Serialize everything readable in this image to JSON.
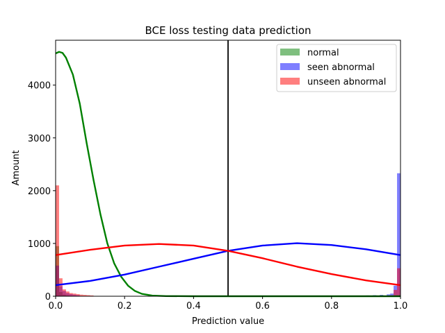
{
  "chart_data": {
    "type": "histogram",
    "title": "BCE loss testing data prediction",
    "xlabel": "Prediction value",
    "ylabel": "Amount",
    "xlim": [
      0.0,
      1.0
    ],
    "ylim": [
      0,
      4850
    ],
    "xticks": [
      "0.0",
      "0.2",
      "0.4",
      "0.6",
      "0.8",
      "1.0"
    ],
    "yticks": [
      "0",
      "1000",
      "2000",
      "3000",
      "4000"
    ],
    "xtick_values": [
      0.0,
      0.2,
      0.4,
      0.6,
      0.8,
      1.0
    ],
    "ytick_values": [
      0,
      1000,
      2000,
      3000,
      4000
    ],
    "threshold": 0.5,
    "legend_placement": "upper right",
    "series": [
      {
        "name": "normal",
        "color": "#008000",
        "histogram": {
          "bin_left_edges": [
            0.0,
            0.01,
            0.02,
            0.03,
            0.04
          ],
          "bin_width": 0.01,
          "counts": [
            950,
            80,
            30,
            15,
            8
          ]
        },
        "curve_points": [
          [
            0.0,
            4600
          ],
          [
            0.01,
            4630
          ],
          [
            0.02,
            4610
          ],
          [
            0.03,
            4520
          ],
          [
            0.05,
            4200
          ],
          [
            0.07,
            3650
          ],
          [
            0.09,
            2900
          ],
          [
            0.11,
            2200
          ],
          [
            0.13,
            1550
          ],
          [
            0.15,
            1000
          ],
          [
            0.17,
            620
          ],
          [
            0.19,
            370
          ],
          [
            0.21,
            200
          ],
          [
            0.23,
            100
          ],
          [
            0.25,
            45
          ],
          [
            0.28,
            12
          ],
          [
            0.32,
            3
          ],
          [
            0.4,
            0
          ],
          [
            0.6,
            0
          ],
          [
            0.8,
            0
          ],
          [
            1.0,
            0
          ]
        ]
      },
      {
        "name": "seen abnormal",
        "color": "#0000ff",
        "histogram": {
          "bin_left_edges": [
            0.0,
            0.01,
            0.02,
            0.03,
            0.04,
            0.05,
            0.06,
            0.9,
            0.92,
            0.94,
            0.96,
            0.97,
            0.98,
            0.99
          ],
          "bin_width": 0.01,
          "counts": [
            580,
            190,
            100,
            60,
            40,
            30,
            20,
            15,
            20,
            25,
            35,
            50,
            200,
            2330
          ]
        },
        "curve_points": [
          [
            0.0,
            210
          ],
          [
            0.1,
            290
          ],
          [
            0.2,
            410
          ],
          [
            0.3,
            560
          ],
          [
            0.4,
            710
          ],
          [
            0.5,
            860
          ],
          [
            0.6,
            960
          ],
          [
            0.7,
            1005
          ],
          [
            0.8,
            970
          ],
          [
            0.9,
            890
          ],
          [
            1.0,
            780
          ]
        ]
      },
      {
        "name": "unseen abnormal",
        "color": "#ff0000",
        "histogram": {
          "bin_left_edges": [
            0.0,
            0.01,
            0.02,
            0.03,
            0.04,
            0.05,
            0.06,
            0.07,
            0.08,
            0.09,
            0.1,
            0.97,
            0.98,
            0.99
          ],
          "bin_width": 0.01,
          "counts": [
            2100,
            340,
            130,
            90,
            60,
            50,
            40,
            30,
            25,
            20,
            15,
            20,
            120,
            530
          ]
        },
        "curve_points": [
          [
            0.0,
            780
          ],
          [
            0.1,
            880
          ],
          [
            0.2,
            960
          ],
          [
            0.3,
            990
          ],
          [
            0.4,
            960
          ],
          [
            0.5,
            860
          ],
          [
            0.6,
            720
          ],
          [
            0.7,
            560
          ],
          [
            0.8,
            420
          ],
          [
            0.9,
            300
          ],
          [
            1.0,
            210
          ]
        ]
      }
    ]
  }
}
